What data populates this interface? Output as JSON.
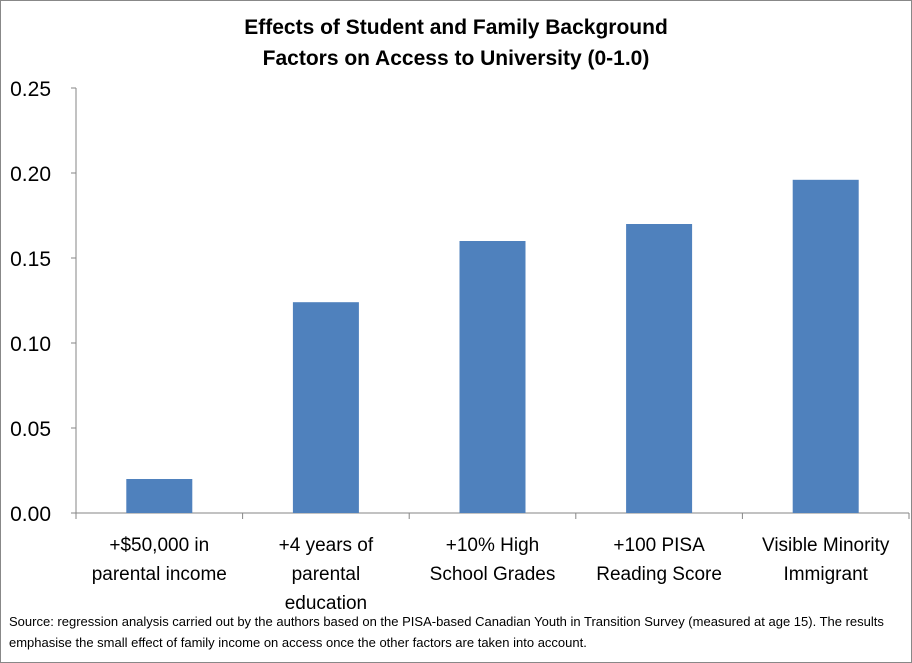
{
  "chart_data": {
    "type": "bar",
    "title": [
      "Effects of Student and Family Background",
      "Factors on Access to University (0-1.0)"
    ],
    "categories": [
      [
        "+$50,000 in",
        "parental income"
      ],
      [
        "+4 years of",
        "parental",
        "education"
      ],
      [
        "+10% High",
        "School Grades"
      ],
      [
        "+100 PISA",
        "Reading Score"
      ],
      [
        "Visible Minority",
        "Immigrant"
      ]
    ],
    "values": [
      0.02,
      0.124,
      0.16,
      0.17,
      0.196
    ],
    "yticks": [
      "0.00",
      "0.05",
      "0.10",
      "0.15",
      "0.20",
      "0.25"
    ],
    "ylim": [
      0,
      0.25
    ],
    "xlabel": "",
    "ylabel": "",
    "grid": false,
    "bar_color": "#4F81BD",
    "source": "Source: regression analysis carried out by the authors based on the PISA-based Canadian Youth in Transition Survey (measured at age 15). The results emphasise the small effect of family income on access once the other factors are taken into account."
  }
}
